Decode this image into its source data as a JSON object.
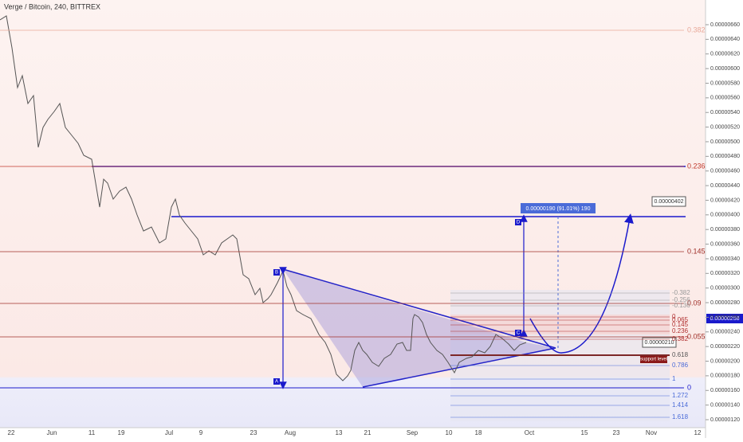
{
  "header": {
    "title": "Verge / Bitcoin, 240, BITTREX"
  },
  "price_axis": {
    "labels": [
      "0.00000660",
      "0.00000640",
      "0.00000620",
      "0.00000600",
      "0.00000580",
      "0.00000560",
      "0.00000540",
      "0.00000520",
      "0.00000500",
      "0.00000480",
      "0.00000460",
      "0.00000440",
      "0.00000420",
      "0.00000400",
      "0.00000380",
      "0.00000360",
      "0.00000340",
      "0.00000320",
      "0.00000300",
      "0.00000280",
      "0.00000260",
      "0.00000240",
      "0.00000220",
      "0.00000200",
      "0.00000180",
      "0.00000160",
      "0.00000140",
      "0.00000120"
    ],
    "current": "0.00000258"
  },
  "time_axis": {
    "labels": [
      "22",
      "Jun",
      "11",
      "19",
      "Jul",
      "9",
      "23",
      "Aug",
      "13",
      "21",
      "Sep",
      "10",
      "18",
      "Oct",
      "15",
      "23",
      "Nov",
      "12"
    ]
  },
  "fib_left": {
    "levels": [
      "0.382",
      "0.236",
      "0.145",
      "0.09",
      "0.055",
      "0"
    ]
  },
  "fib_right": {
    "levels": [
      "-0.382",
      "-0.256",
      "-0.136",
      "0",
      "0.065",
      "0.145",
      "0.236",
      "0.382",
      "0.618",
      "0.786",
      "1",
      "1.272",
      "1.414",
      "1.618"
    ]
  },
  "annotations": {
    "measure": "0.00000190 (91.01%) 190",
    "target": "0.00000402",
    "entry": "0.00000210",
    "support": "support level",
    "points": [
      "A",
      "B",
      "C",
      "D"
    ]
  }
}
